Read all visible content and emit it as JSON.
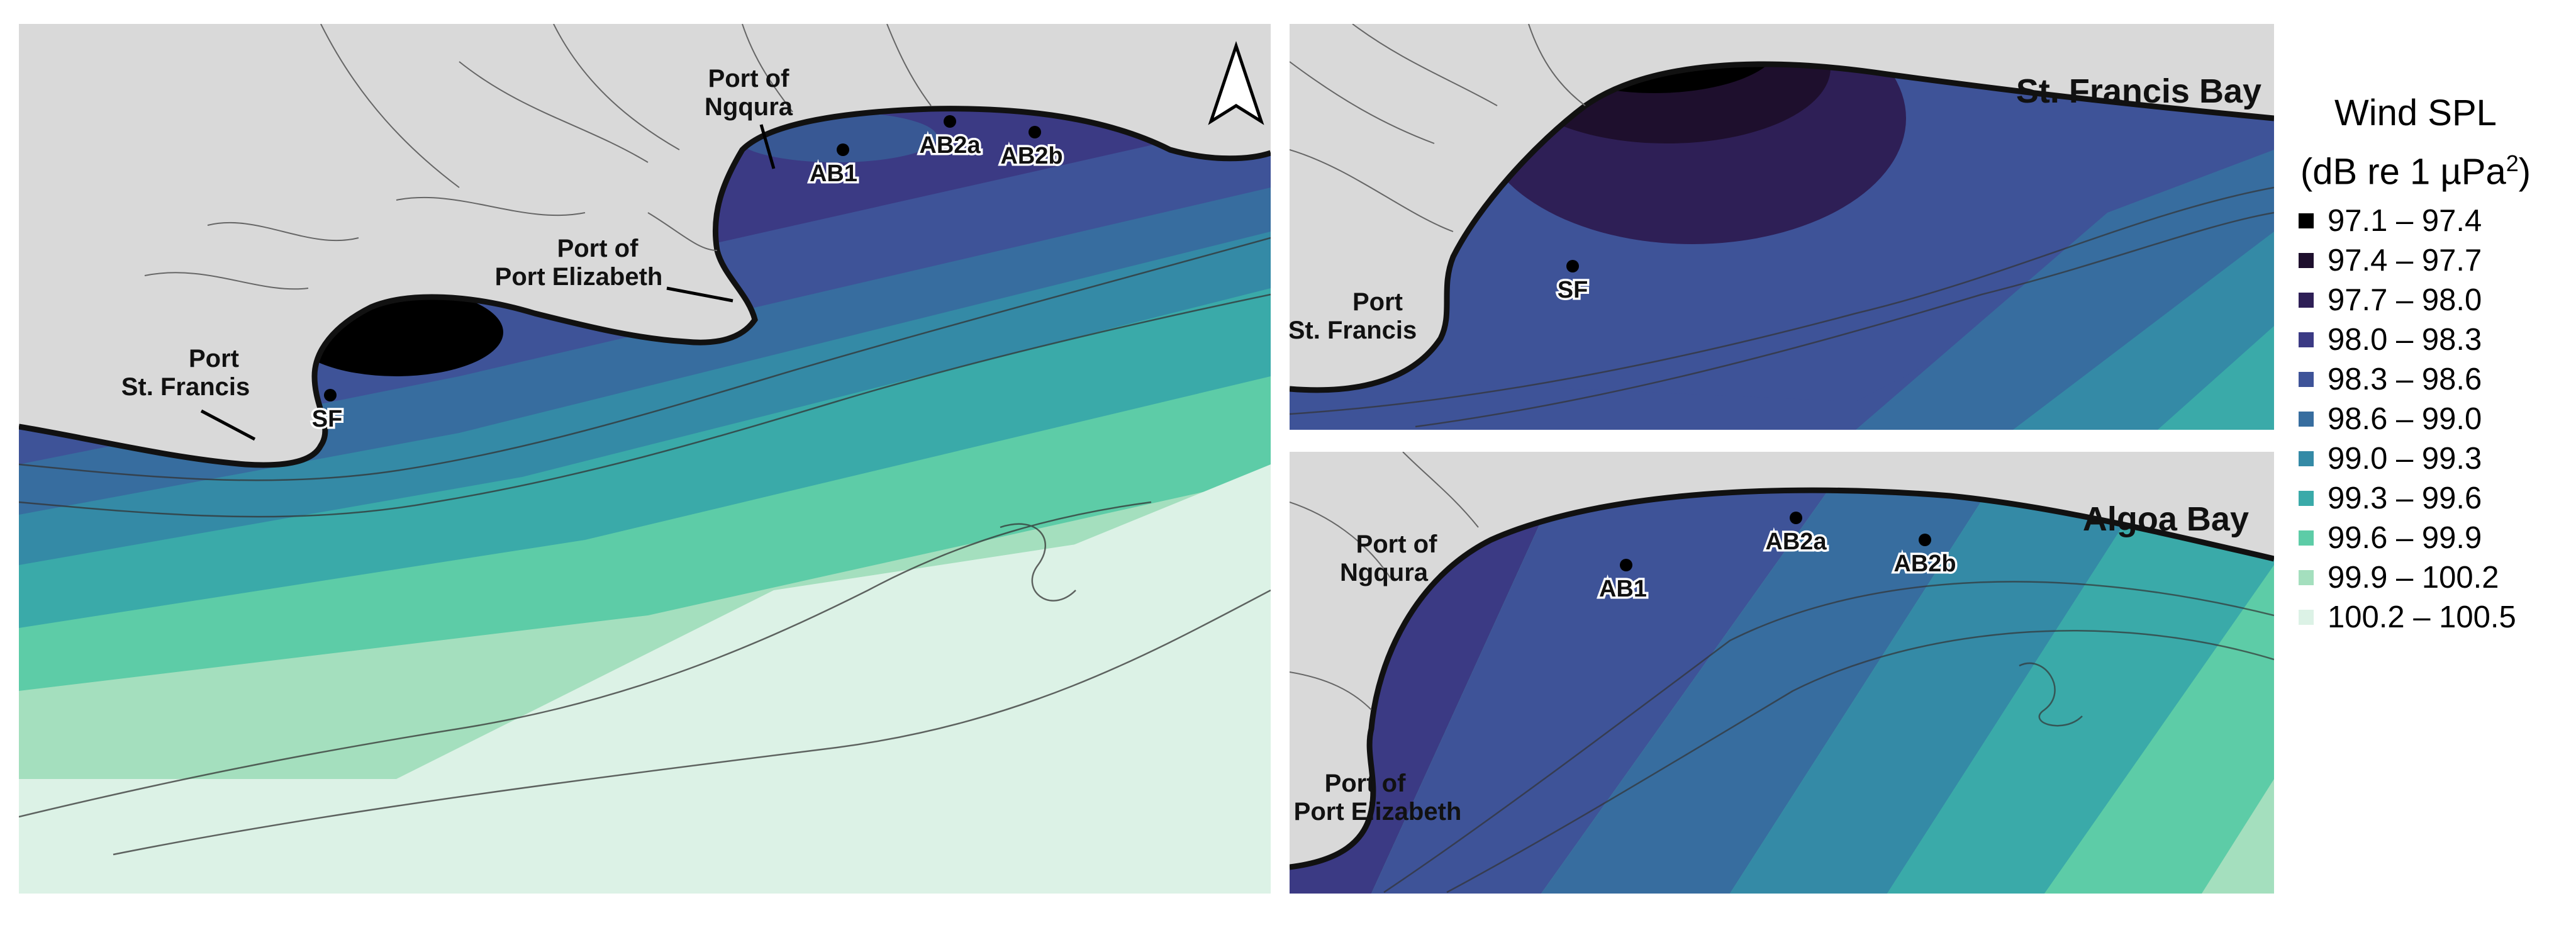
{
  "legend": {
    "title_line1": "Wind SPL",
    "title_line2_prefix": "(dB re 1 µPa",
    "title_line2_sup": "2",
    "title_line2_suffix": ")",
    "items": [
      {
        "label": "97.1 – 97.4",
        "color": "#000000"
      },
      {
        "label": "97.4 – 97.7",
        "color": "#1e0f2d"
      },
      {
        "label": "97.7 – 98.0",
        "color": "#2e1f56"
      },
      {
        "label": "98.0 – 98.3",
        "color": "#3b3a84"
      },
      {
        "label": "98.3 – 98.6",
        "color": "#3e5398"
      },
      {
        "label": "98.6 – 99.0",
        "color": "#376d9f"
      },
      {
        "label": "99.0 – 99.3",
        "color": "#348aa6"
      },
      {
        "label": "99.3 – 99.6",
        "color": "#3aaaa9"
      },
      {
        "label": "99.6 – 99.9",
        "color": "#5dcca7"
      },
      {
        "label": "99.9 – 100.2",
        "color": "#a4dfbe"
      },
      {
        "label": "100.2 – 100.5",
        "color": "#dcf2e6"
      }
    ]
  },
  "main_map": {
    "labels": {
      "port_ngqura_line1": "Port of",
      "port_ngqura_line2": "Ngqura",
      "port_pe_line1": "Port of",
      "port_pe_line2": "Port Elizabeth",
      "port_sf_line1": "Port",
      "port_sf_line2": "St. Francis"
    },
    "sites": [
      "SF",
      "AB1",
      "AB2a",
      "AB2b"
    ]
  },
  "inset_st_francis": {
    "title": "St. Francis Bay",
    "port_line1": "Port",
    "port_line2": "St. Francis",
    "site": "SF"
  },
  "inset_algoa": {
    "title": "Algoa Bay",
    "port_ngqura_line1": "Port of",
    "port_ngqura_line2": "Ngqura",
    "port_pe_line1": "Port of",
    "port_pe_line2": "Port Elizabeth",
    "sites": [
      "AB1",
      "AB2a",
      "AB2b"
    ]
  },
  "north_arrow": "north-arrow-icon"
}
